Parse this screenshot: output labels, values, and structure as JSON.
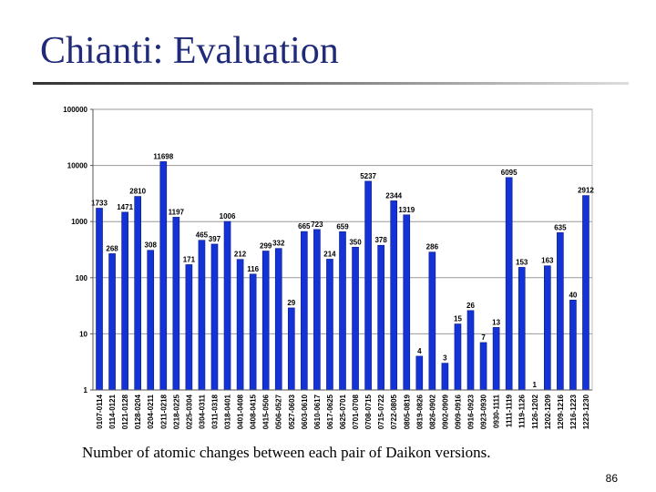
{
  "slide": {
    "title": "Chianti: Evaluation",
    "caption": "Number of atomic changes between each pair of Daikon versions.",
    "page_number": "86"
  },
  "colors": {
    "bar": "#1433d6",
    "bar_edge": "#0a1a80",
    "title": "#1f2a78",
    "grid": "#9a9a9a"
  },
  "chart_data": {
    "type": "bar",
    "scale": "log",
    "ylim": [
      1,
      100000
    ],
    "y_ticks": [
      1,
      10,
      100,
      1000,
      10000,
      100000
    ],
    "y_tick_labels": [
      "1",
      "10",
      "100",
      "1000",
      "10000",
      "100000"
    ],
    "grid": true,
    "legend": "none",
    "categories": [
      "0107-0114",
      "0114-0121",
      "0121-0128",
      "0128-0204",
      "0204-0211",
      "0211-0218",
      "0218-0225",
      "0225-0304",
      "0304-0311",
      "0311-0318",
      "0318-0401",
      "0401-0408",
      "0408-0415",
      "0415-0506",
      "0506-0527",
      "0527-0603",
      "0603-0610",
      "0610-0617",
      "0617-0625",
      "0625-0701",
      "0701-0708",
      "0708-0715",
      "0715-0722",
      "0722-0805",
      "0805-0819",
      "0819-0826",
      "0826-0902",
      "0902-0909",
      "0909-0916",
      "0916-0923",
      "0923-0930",
      "0930-1111",
      "1111-1119",
      "1119-1126",
      "1126-1202",
      "1202-1209",
      "1209-1216",
      "1216-1223",
      "1223-1230"
    ],
    "values": [
      1733,
      268,
      1471,
      2810,
      308,
      11698,
      1197,
      171,
      465,
      397,
      1006,
      212,
      116,
      299,
      332,
      29,
      665,
      723,
      214,
      659,
      350,
      5237,
      378,
      2344,
      1319,
      4,
      286,
      3,
      15,
      26,
      7,
      13,
      6095,
      153,
      1,
      163,
      635,
      40,
      2912
    ],
    "data_labels": [
      "1733",
      "268",
      "1471",
      "2810",
      "308",
      "11698",
      "1197",
      "171",
      "465",
      "397",
      "1006",
      "212",
      "116",
      "299",
      "332",
      "29",
      "665",
      "723",
      "214",
      "659",
      "350",
      "5237",
      "378",
      "2344",
      "1319",
      "4",
      "286",
      "3",
      "15",
      "26",
      "7",
      "13",
      "6095",
      "153",
      "1",
      "163",
      "635",
      "40",
      "2912"
    ]
  }
}
